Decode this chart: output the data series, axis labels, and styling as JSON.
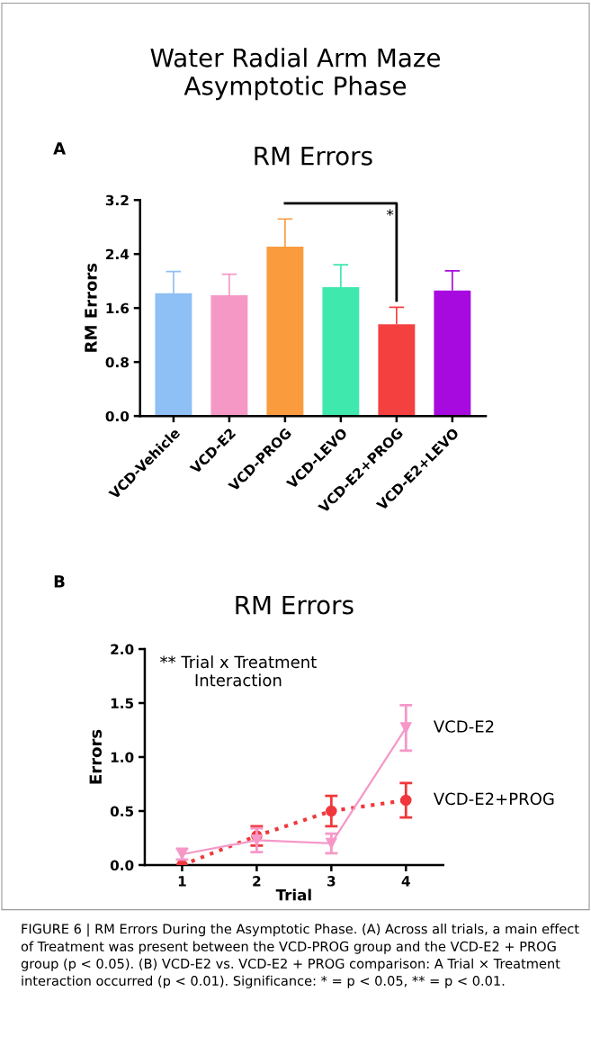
{
  "chart_data": [
    {
      "type": "bar",
      "title": "RM Errors",
      "ylabel": "RM Errors",
      "categories": [
        "VCD-Vehicle",
        "VCD-E2",
        "VCD-PROG",
        "VCD-LEVO",
        "VCD-E2+PROG",
        "VCD-E2+LEVO"
      ],
      "values": [
        1.82,
        1.79,
        2.51,
        1.91,
        1.36,
        1.86
      ],
      "errors": [
        [
          1.82,
          2.14
        ],
        [
          1.79,
          2.1
        ],
        [
          2.51,
          2.92
        ],
        [
          1.91,
          2.24
        ],
        [
          1.36,
          1.61
        ],
        [
          1.86,
          2.15
        ]
      ],
      "colors": [
        "#8ebff5",
        "#f598c6",
        "#fa9c3e",
        "#3fe9ad",
        "#f54040",
        "#a70adf"
      ],
      "ylim": [
        0,
        3.2
      ],
      "yticks": [
        {
          "value": 0,
          "label": "0.0"
        },
        0.8,
        1.6,
        2.4,
        3.2
      ],
      "grid": false,
      "legend": false,
      "annotations": [
        "Water Radial Arm Maze\nAsymptotic Phase",
        "A",
        "*"
      ]
    },
    {
      "type": "line",
      "title": "RM Errors",
      "xlabel": "Trial",
      "ylabel": "Errors",
      "x": [
        1,
        2,
        3,
        4
      ],
      "series": [
        {
          "name": "VCD-E2",
          "color": "#f598c8",
          "values": [
            0.1,
            0.23,
            0.2,
            1.27
          ],
          "errors": [
            0.05,
            0.11,
            0.09,
            0.21
          ],
          "marker": "triangle",
          "line_style": "solid"
        },
        {
          "name": "VCD-E2+PROG",
          "color": "#f0383c",
          "values": [
            0.0,
            0.27,
            0.5,
            0.6
          ],
          "errors": [
            null,
            0.09,
            0.14,
            0.16
          ],
          "marker": "circle",
          "line_style": "dotted"
        }
      ],
      "xlim": [
        0.5,
        4.5
      ],
      "xticks": [
        1,
        2,
        3,
        4
      ],
      "ylim": [
        0,
        2.0
      ],
      "yticks": [
        {
          "value": 0,
          "label": "0.0"
        },
        {
          "value": 0.5,
          "label": "0.5"
        },
        {
          "value": 1.0,
          "label": "1.0"
        },
        {
          "value": 1.5,
          "label": "1.5"
        },
        {
          "value": 2.0,
          "label": "2.0"
        }
      ],
      "grid": false,
      "legend": false,
      "annotations": [
        "B",
        "** Trial x Treatment\nInteraction",
        "FIGURE 6 | RM Errors During the Asymptotic Phase. (A) Across all trials, a main effect of Treatment was present between the VCD-PROG group and the VCD-E2 + PROG group (p < 0.05). (B) VCD-E2 vs. VCD-E2 + PROG comparison: A Trial × Treatment interaction occurred (p < 0.01). Significance: * = p < 0.05, ** = p < 0.01."
      ]
    }
  ]
}
